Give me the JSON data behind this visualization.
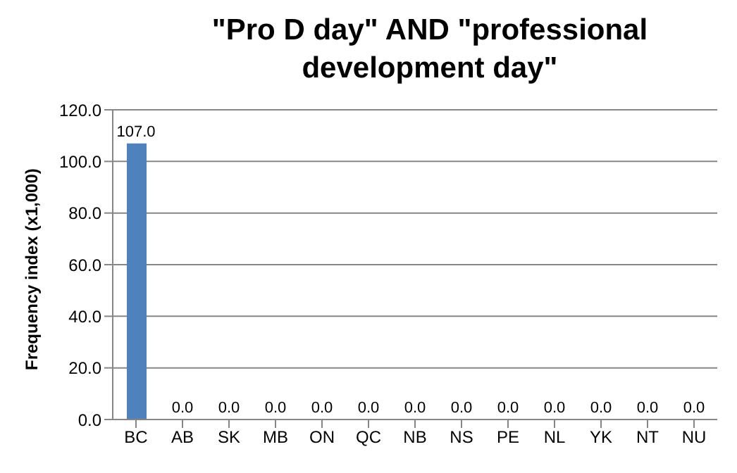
{
  "chart_data": {
    "type": "bar",
    "title": "\"Pro D day\" AND \"professional development day\"",
    "ylabel": "Frequency index (x1,000)",
    "categories": [
      "BC",
      "AB",
      "SK",
      "MB",
      "ON",
      "QC",
      "NB",
      "NS",
      "PE",
      "NL",
      "YK",
      "NT",
      "NU"
    ],
    "values": [
      107,
      0,
      0,
      0,
      0,
      0,
      0,
      0,
      0,
      0,
      0,
      0,
      0
    ],
    "value_labels": [
      "107.0",
      "0.0",
      "0.0",
      "0.0",
      "0.0",
      "0.0",
      "0.0",
      "0.0",
      "0.0",
      "0.0",
      "0.0",
      "0.0",
      "0.0"
    ],
    "color": "#4f81bd",
    "ylim": [
      0,
      120
    ],
    "yticks": [
      {
        "value": 0,
        "label": "0.0"
      },
      {
        "value": 20,
        "label": "20.0"
      },
      {
        "value": 40,
        "label": "40.0"
      },
      {
        "value": 60,
        "label": "60.0"
      },
      {
        "value": 80,
        "label": "80.0"
      },
      {
        "value": 100,
        "label": "100.0"
      },
      {
        "value": 120,
        "label": "120.0"
      }
    ],
    "grid": "y",
    "legend": false
  }
}
